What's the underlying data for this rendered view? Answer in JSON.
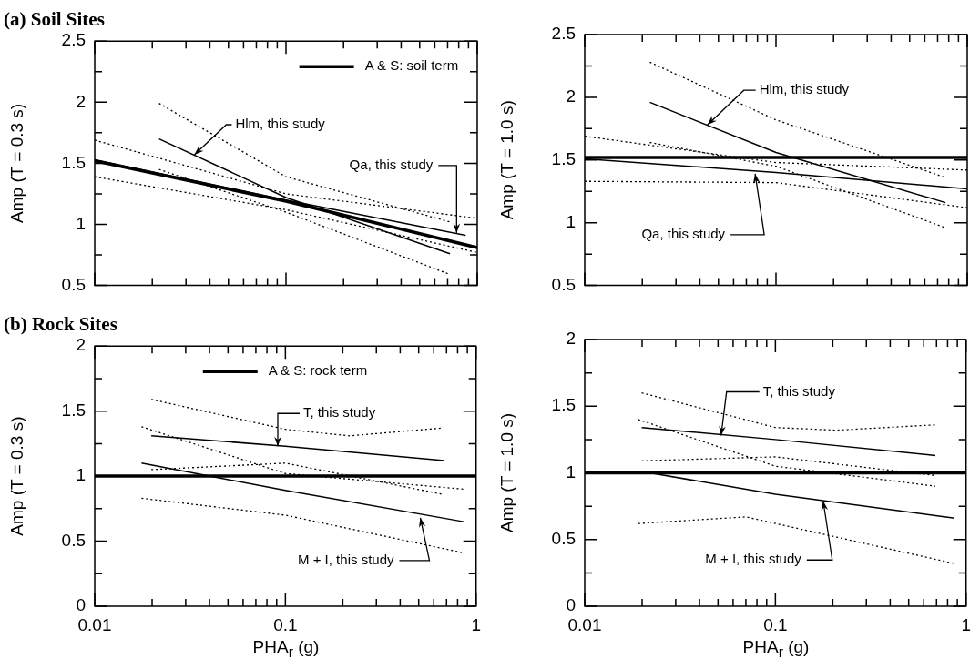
{
  "chart_data": [
    {
      "type": "line",
      "title": "(a) Soil Sites",
      "ylabel": "Amp (T = 0.3 s)",
      "log": "x",
      "grid": false,
      "legend": "top right",
      "tick_labels": "y",
      "xlim": [
        0.01,
        1
      ],
      "ylim": [
        0.5,
        2.5
      ],
      "xticks": [
        {
          "value": 0.01,
          "label": null
        },
        {
          "value": 0.02,
          "label": null
        },
        {
          "value": 0.03,
          "label": null
        },
        {
          "value": 0.04,
          "label": null
        },
        {
          "value": 0.05,
          "label": null
        },
        {
          "value": 0.06,
          "label": null
        },
        {
          "value": 0.07,
          "label": null
        },
        {
          "value": 0.08,
          "label": null
        },
        {
          "value": 0.09,
          "label": null
        },
        {
          "value": 0.1,
          "label": null
        },
        {
          "value": 0.2,
          "label": null
        },
        {
          "value": 0.3,
          "label": null
        },
        {
          "value": 0.4,
          "label": null
        },
        {
          "value": 0.5,
          "label": null
        },
        {
          "value": 0.6,
          "label": null
        },
        {
          "value": 0.7,
          "label": null
        },
        {
          "value": 0.8,
          "label": null
        },
        {
          "value": 0.9,
          "label": null
        },
        {
          "value": 1,
          "label": null
        }
      ],
      "yticks": [
        0.5,
        {
          "value": 0.75,
          "label": null
        },
        1,
        {
          "value": 1.25,
          "label": null
        },
        1.5,
        {
          "value": 1.75,
          "label": null
        },
        2,
        {
          "value": 2.25,
          "label": null
        },
        2.5
      ],
      "series": [
        {
          "name": "A & S: soil term",
          "color": "#000000",
          "line_style": "solid",
          "x": [
            0.01,
            0.1,
            1
          ],
          "values": [
            1.52,
            1.19,
            0.81
          ]
        },
        {
          "color": "#000000",
          "line_style": "solid",
          "x": [
            0.0217,
            0.1,
            0.72
          ],
          "values": [
            1.7,
            1.22,
            0.76
          ]
        },
        {
          "color": "#000000",
          "line_style": "dotted",
          "x": [
            0.0217,
            0.1,
            0.72
          ],
          "values": [
            1.99,
            1.39,
            1.02
          ]
        },
        {
          "color": "#000000",
          "line_style": "dotted",
          "x": [
            0.0217,
            0.1,
            0.72
          ],
          "values": [
            1.45,
            1.1,
            0.59
          ]
        },
        {
          "color": "#000000",
          "line_style": "solid",
          "x": [
            0.01,
            0.1,
            0.87
          ],
          "values": [
            1.53,
            1.2,
            0.91
          ]
        },
        {
          "color": "#000000",
          "line_style": "dotted",
          "x": [
            0.01,
            0.1,
            1
          ],
          "values": [
            1.69,
            1.25,
            1.05
          ]
        },
        {
          "color": "#000000",
          "line_style": "dotted",
          "x": [
            0.01,
            0.1,
            1
          ],
          "values": [
            1.39,
            1.12,
            0.77
          ]
        }
      ],
      "annotations": [
        {
          "text": "Hlm, this study",
          "x": 0.0332,
          "y": 1.57
        },
        {
          "text": "Qa, this study",
          "x": 0.78,
          "y": 0.93
        }
      ]
    },
    {
      "type": "line",
      "ylabel": "Amp (T = 1.0 s)",
      "log": "x",
      "grid": false,
      "tick_labels": "y",
      "xlim": [
        0.01,
        1
      ],
      "ylim": [
        0.5,
        2.5
      ],
      "xticks": [
        {
          "value": 0.01,
          "label": null
        },
        {
          "value": 0.02,
          "label": null
        },
        {
          "value": 0.03,
          "label": null
        },
        {
          "value": 0.04,
          "label": null
        },
        {
          "value": 0.05,
          "label": null
        },
        {
          "value": 0.06,
          "label": null
        },
        {
          "value": 0.07,
          "label": null
        },
        {
          "value": 0.08,
          "label": null
        },
        {
          "value": 0.09,
          "label": null
        },
        {
          "value": 0.1,
          "label": null
        },
        {
          "value": 0.2,
          "label": null
        },
        {
          "value": 0.3,
          "label": null
        },
        {
          "value": 0.4,
          "label": null
        },
        {
          "value": 0.5,
          "label": null
        },
        {
          "value": 0.6,
          "label": null
        },
        {
          "value": 0.7,
          "label": null
        },
        {
          "value": 0.8,
          "label": null
        },
        {
          "value": 0.9,
          "label": null
        },
        {
          "value": 1,
          "label": null
        }
      ],
      "yticks": [
        0.5,
        {
          "value": 0.75,
          "label": null
        },
        1,
        {
          "value": 1.25,
          "label": null
        },
        1.5,
        {
          "value": 1.75,
          "label": null
        },
        2,
        {
          "value": 2.25,
          "label": null
        },
        2.5
      ],
      "series": [
        {
          "color": "#000000",
          "line_style": "solid",
          "x": [
            0.01,
            1
          ],
          "values": [
            1.52,
            1.52
          ]
        },
        {
          "color": "#000000",
          "line_style": "solid",
          "x": [
            0.0219,
            0.1,
            0.77
          ],
          "values": [
            1.96,
            1.56,
            1.16
          ]
        },
        {
          "color": "#000000",
          "line_style": "dotted",
          "x": [
            0.0219,
            0.1,
            0.77
          ],
          "values": [
            2.28,
            1.82,
            1.36
          ]
        },
        {
          "color": "#000000",
          "line_style": "dotted",
          "x": [
            0.0219,
            0.1,
            0.77
          ],
          "values": [
            1.64,
            1.45,
            0.96
          ]
        },
        {
          "color": "#000000",
          "line_style": "solid",
          "x": [
            0.01,
            0.1,
            1
          ],
          "values": [
            1.51,
            1.4,
            1.27
          ]
        },
        {
          "color": "#000000",
          "line_style": "dotted",
          "x": [
            0.01,
            0.1,
            1
          ],
          "values": [
            1.69,
            1.48,
            1.42
          ]
        },
        {
          "color": "#000000",
          "line_style": "dotted",
          "x": [
            0.01,
            0.1,
            1
          ],
          "values": [
            1.33,
            1.32,
            1.12
          ]
        }
      ],
      "annotations": [
        {
          "text": "Hlm, this study",
          "x": 0.0438,
          "y": 1.78
        },
        {
          "text": "Qa, this study",
          "x": 0.0778,
          "y": 1.39
        }
      ]
    },
    {
      "type": "line",
      "title": "(b) Rock Sites",
      "ylabel": "Amp (T = 0.3 s)",
      "xlabel": "PHA$_{r}$ (g)",
      "log": "x",
      "grid": false,
      "legend": "top",
      "xlim": [
        0.01,
        1
      ],
      "ylim": [
        0,
        2
      ],
      "xticks": [
        0.01,
        {
          "value": 0.02,
          "label": null
        },
        {
          "value": 0.03,
          "label": null
        },
        {
          "value": 0.04,
          "label": null
        },
        {
          "value": 0.05,
          "label": null
        },
        {
          "value": 0.06,
          "label": null
        },
        {
          "value": 0.07,
          "label": null
        },
        {
          "value": 0.08,
          "label": null
        },
        {
          "value": 0.09,
          "label": null
        },
        0.1,
        {
          "value": 0.2,
          "label": null
        },
        {
          "value": 0.3,
          "label": null
        },
        {
          "value": 0.4,
          "label": null
        },
        {
          "value": 0.5,
          "label": null
        },
        {
          "value": 0.6,
          "label": null
        },
        {
          "value": 0.7,
          "label": null
        },
        {
          "value": 0.8,
          "label": null
        },
        {
          "value": 0.9,
          "label": null
        },
        1
      ],
      "yticks": [
        0,
        {
          "value": 0.25,
          "label": null
        },
        0.5,
        {
          "value": 0.75,
          "label": null
        },
        1,
        {
          "value": 1.25,
          "label": null
        },
        1.5,
        {
          "value": 1.75,
          "label": null
        },
        2
      ],
      "series": [
        {
          "name": "A & S: rock term",
          "color": "#000000",
          "line_style": "solid",
          "x": [
            0.01,
            1
          ],
          "values": [
            1,
            1
          ]
        },
        {
          "color": "#000000",
          "line_style": "solid",
          "x": [
            0.0198,
            0.1,
            0.68
          ],
          "values": [
            1.31,
            1.23,
            1.12
          ]
        },
        {
          "color": "#000000",
          "line_style": "dotted",
          "x": [
            0.0198,
            0.1,
            0.217,
            0.67
          ],
          "values": [
            1.59,
            1.36,
            1.31,
            1.37
          ]
        },
        {
          "color": "#000000",
          "line_style": "dotted",
          "x": [
            0.0198,
            0.1,
            0.67
          ],
          "values": [
            1.05,
            1.1,
            0.86
          ]
        },
        {
          "color": "#000000",
          "line_style": "solid",
          "x": [
            0.0176,
            0.1,
            0.86
          ],
          "values": [
            1.1,
            0.89,
            0.65
          ]
        },
        {
          "color": "#000000",
          "line_style": "dotted",
          "x": [
            0.0176,
            0.1,
            0.86
          ],
          "values": [
            1.38,
            1.02,
            0.9
          ]
        },
        {
          "color": "#000000",
          "line_style": "dotted",
          "x": [
            0.0176,
            0.1,
            0.86
          ],
          "values": [
            0.83,
            0.7,
            0.41
          ]
        }
      ],
      "annotations": [
        {
          "text": "T, this study",
          "x": 0.0912,
          "y": 1.23
        },
        {
          "text": "M + I, this study",
          "x": 0.51,
          "y": 0.68
        }
      ]
    },
    {
      "type": "line",
      "ylabel": "Amp (T = 1.0 s)",
      "xlabel": "PHA$_{r}$ (g)",
      "log": "x",
      "grid": false,
      "xlim": [
        0.01,
        1
      ],
      "ylim": [
        0,
        2
      ],
      "xticks": [
        0.01,
        {
          "value": 0.02,
          "label": null
        },
        {
          "value": 0.03,
          "label": null
        },
        {
          "value": 0.04,
          "label": null
        },
        {
          "value": 0.05,
          "label": null
        },
        {
          "value": 0.06,
          "label": null
        },
        {
          "value": 0.07,
          "label": null
        },
        {
          "value": 0.08,
          "label": null
        },
        {
          "value": 0.09,
          "label": null
        },
        0.1,
        {
          "value": 0.2,
          "label": null
        },
        {
          "value": 0.3,
          "label": null
        },
        {
          "value": 0.4,
          "label": null
        },
        {
          "value": 0.5,
          "label": null
        },
        {
          "value": 0.6,
          "label": null
        },
        {
          "value": 0.7,
          "label": null
        },
        {
          "value": 0.8,
          "label": null
        },
        {
          "value": 0.9,
          "label": null
        },
        1
      ],
      "yticks": [
        0,
        {
          "value": 0.25,
          "label": null
        },
        0.5,
        {
          "value": 0.75,
          "label": null
        },
        1,
        {
          "value": 1.25,
          "label": null
        },
        1.5,
        {
          "value": 1.75,
          "label": null
        },
        2
      ],
      "series": [
        {
          "color": "#000000",
          "line_style": "solid",
          "x": [
            0.01,
            1
          ],
          "values": [
            1,
            1
          ]
        },
        {
          "color": "#000000",
          "line_style": "solid",
          "x": [
            0.0199,
            0.1,
            0.69
          ],
          "values": [
            1.34,
            1.25,
            1.13
          ]
        },
        {
          "color": "#000000",
          "line_style": "dotted",
          "x": [
            0.0199,
            0.1,
            0.21,
            0.69
          ],
          "values": [
            1.6,
            1.34,
            1.32,
            1.36
          ]
        },
        {
          "color": "#000000",
          "line_style": "dotted",
          "x": [
            0.0199,
            0.1,
            0.69
          ],
          "values": [
            1.09,
            1.12,
            0.98
          ]
        },
        {
          "color": "#000000",
          "line_style": "solid",
          "x": [
            0.0199,
            0.1,
            0.87
          ],
          "values": [
            1.01,
            0.84,
            0.66
          ]
        },
        {
          "color": "#000000",
          "line_style": "dotted",
          "x": [
            0.0191,
            0.1,
            0.69
          ],
          "values": [
            1.4,
            1.05,
            0.9
          ]
        },
        {
          "color": "#000000",
          "line_style": "dotted",
          "x": [
            0.0191,
            0.07,
            0.87
          ],
          "values": [
            0.62,
            0.67,
            0.32
          ]
        }
      ],
      "annotations": [
        {
          "text": "T, this study",
          "x": 0.0519,
          "y": 1.28
        },
        {
          "text": "M + I, this study",
          "x": 0.178,
          "y": 0.79
        }
      ]
    }
  ]
}
